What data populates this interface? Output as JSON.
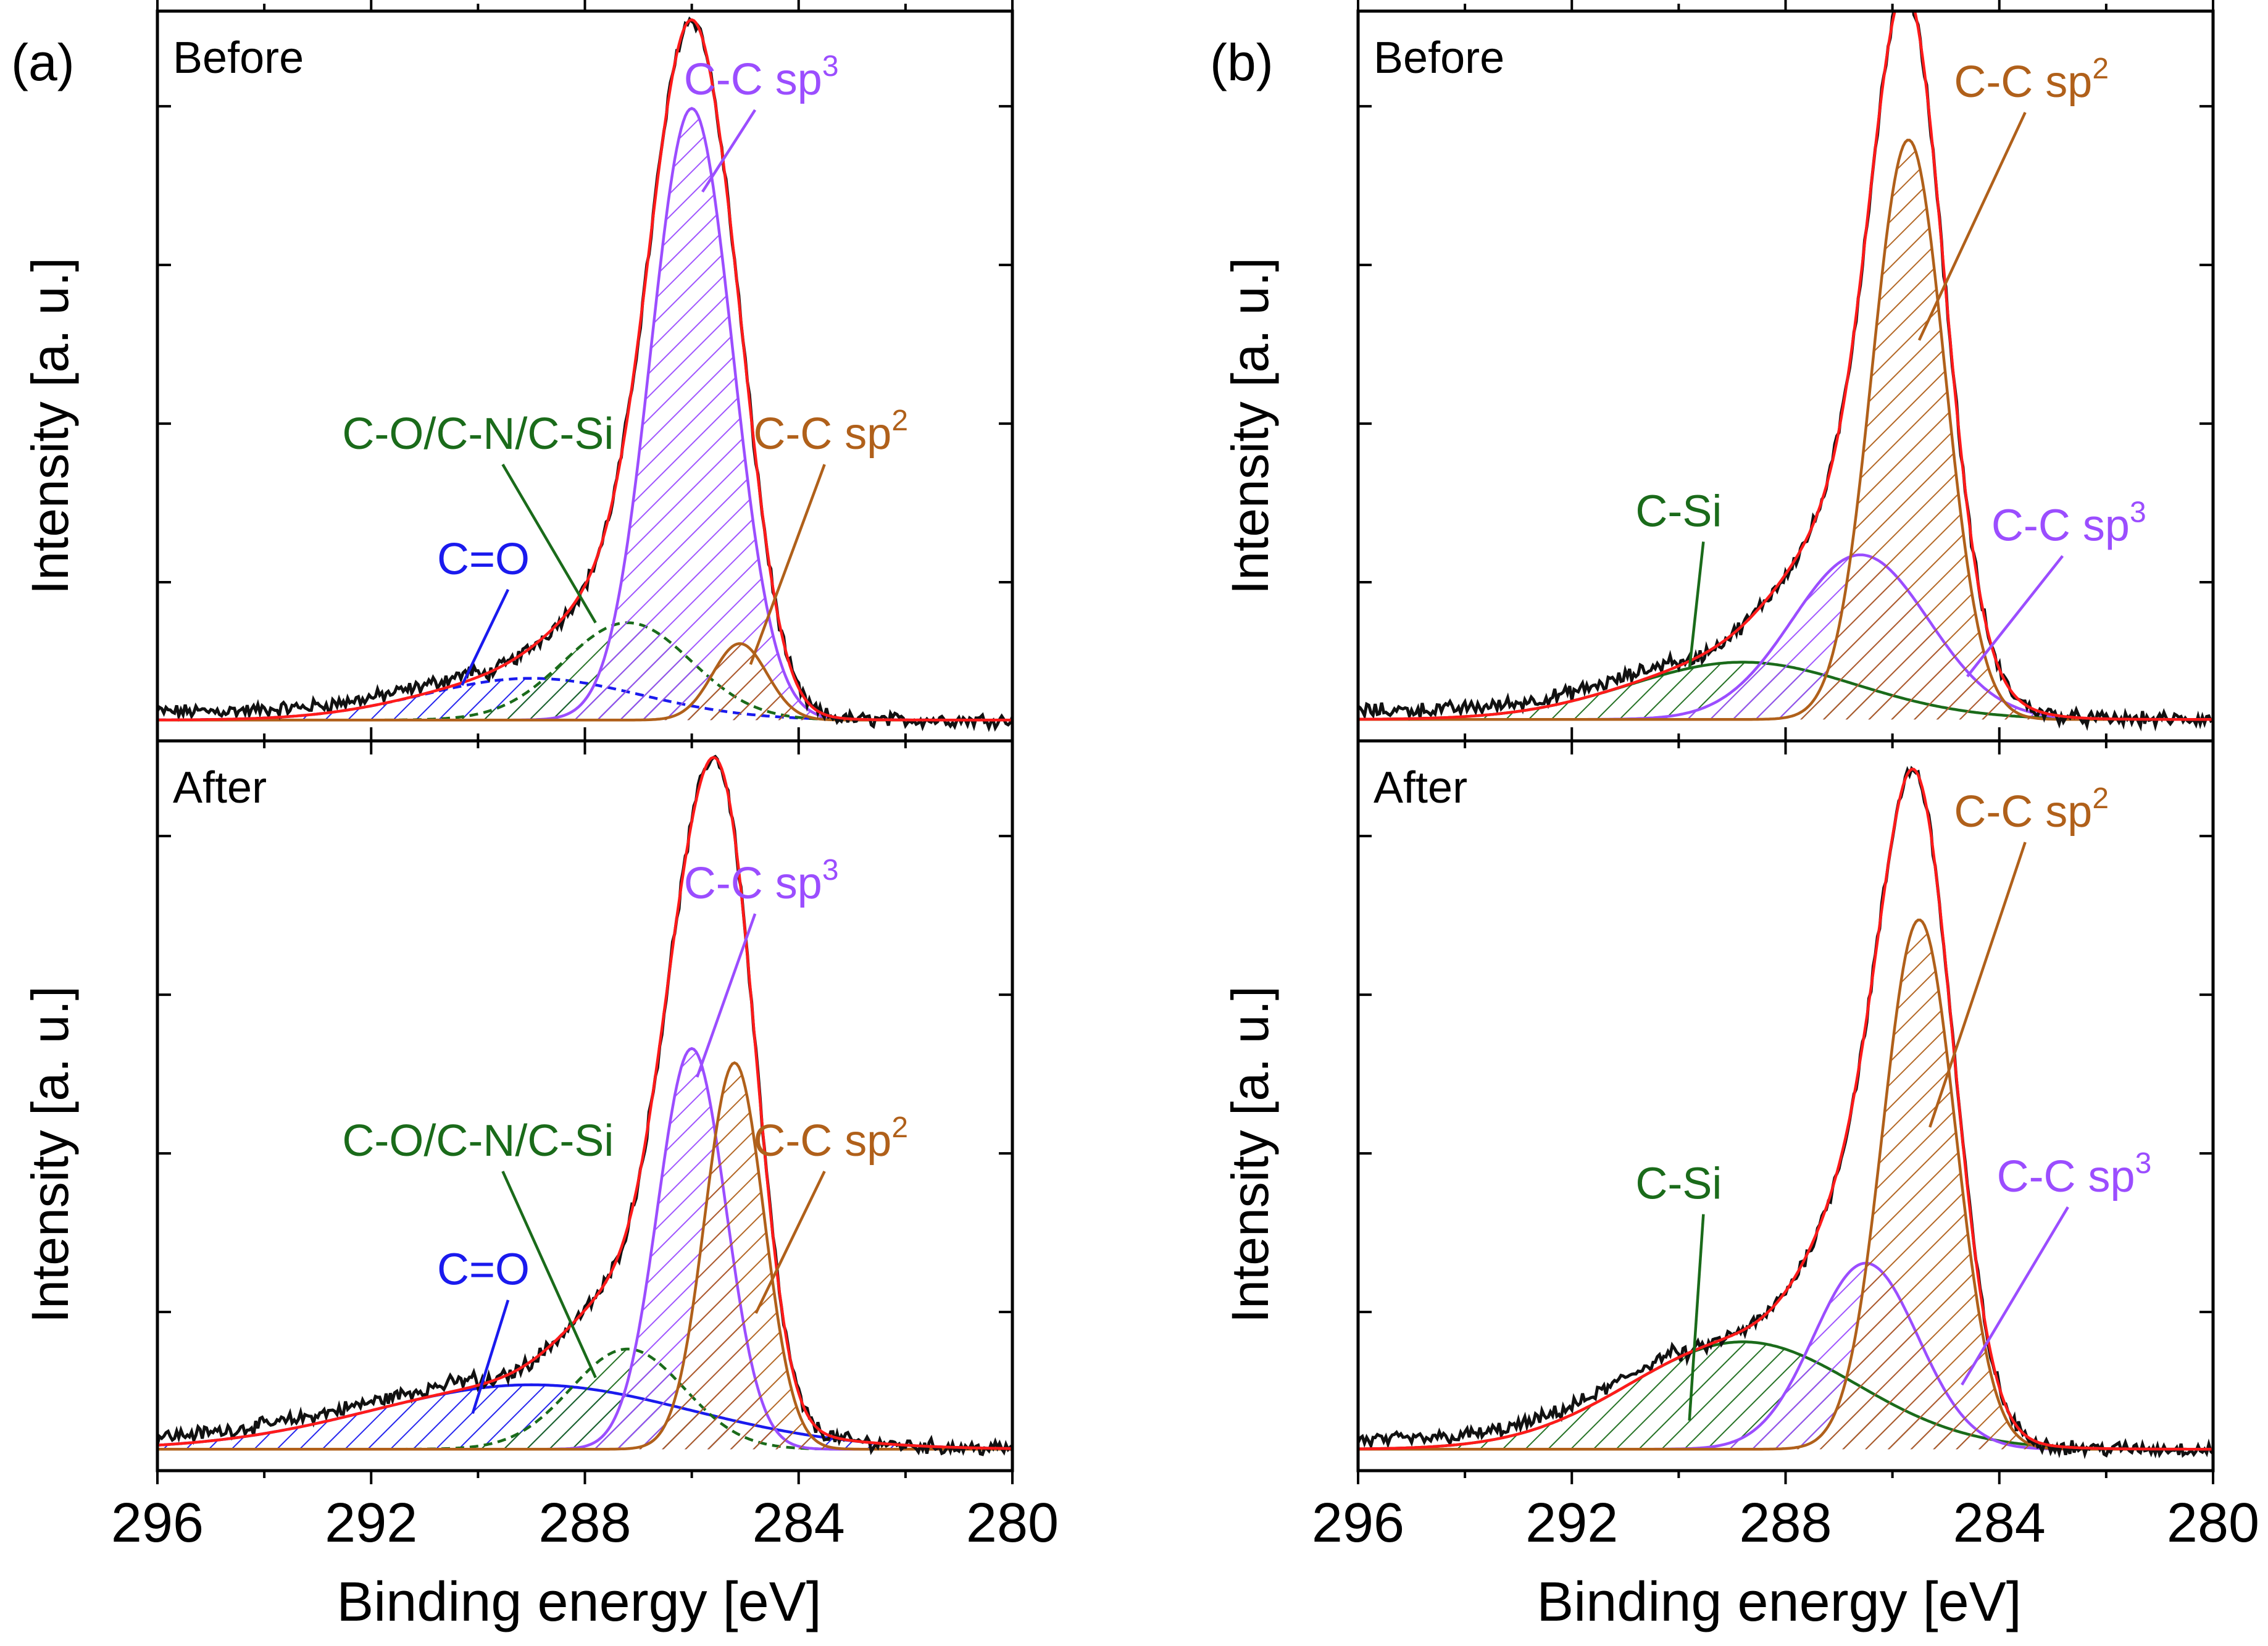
{
  "colors": {
    "measured": "#111111",
    "envelope": "#ff1a1a",
    "co": "#1a1aee",
    "cocnsi": "#1a6b1a",
    "sp3": "#9b4dff",
    "sp2": "#b0601a",
    "frame": "#000000"
  },
  "panels": [
    {
      "id": "a",
      "label": "(a)",
      "xlabel": "Binding energy [eV]",
      "ylabel": "Intensity [a. u.]"
    },
    {
      "id": "b",
      "label": "(b)",
      "xlabel": "Binding energy [eV]",
      "ylabel": "Intensity [a. u.]"
    }
  ],
  "chart_data": [
    {
      "type": "line",
      "panel": "a",
      "subplot": "Before",
      "title": "Before",
      "xlabel": "Binding energy [eV]",
      "ylabel": "Intensity [a. u.]",
      "xlim": [
        296,
        280
      ],
      "ylim": [
        0,
        1.05
      ],
      "xticks": [
        296,
        292,
        288,
        284,
        280
      ],
      "baseline": 0.03,
      "peaks": [
        {
          "name": "C=O",
          "center": 289.0,
          "fwhm": 4.8,
          "height": 0.06,
          "color": "#1a1aee",
          "dashed": true
        },
        {
          "name": "C-O/C-N/C-Si",
          "center": 287.2,
          "fwhm": 2.8,
          "height": 0.14,
          "color": "#1a6b1a",
          "dashed": true
        },
        {
          "name": "C-C sp3",
          "center": 286.0,
          "fwhm": 1.8,
          "height": 0.88,
          "color": "#9b4dff",
          "dashed": false
        },
        {
          "name": "C-C sp2",
          "center": 285.1,
          "fwhm": 1.2,
          "height": 0.11,
          "color": "#b0601a",
          "dashed": false
        }
      ],
      "annotations": [
        {
          "text": "C=O",
          "sup": "",
          "color": "#1a1aee",
          "x": 289.9,
          "y": 0.24,
          "tx": 290.3,
          "ty": 0.08
        },
        {
          "text": "C-O/C-N/C-Si",
          "sup": "",
          "color": "#1a6b1a",
          "x": 290.0,
          "y": 0.42,
          "tx": 287.8,
          "ty": 0.17
        },
        {
          "text": "C-C sp",
          "sup": "3",
          "color": "#9b4dff",
          "x": 284.7,
          "y": 0.93,
          "tx": 285.8,
          "ty": 0.79
        },
        {
          "text": "C-C sp",
          "sup": "2",
          "color": "#b0601a",
          "x": 283.4,
          "y": 0.42,
          "tx": 284.9,
          "ty": 0.11
        }
      ]
    },
    {
      "type": "line",
      "panel": "a",
      "subplot": "After",
      "title": "After",
      "xlabel": "Binding energy [eV]",
      "ylabel": "Intensity [a. u.]",
      "xlim": [
        296,
        280
      ],
      "ylim": [
        0,
        1.02
      ],
      "xticks": [
        296,
        292,
        288,
        284,
        280
      ],
      "baseline": 0.03,
      "peaks": [
        {
          "name": "C=O",
          "center": 289.0,
          "fwhm": 7.0,
          "height": 0.09,
          "color": "#1a1aee",
          "dashed": false
        },
        {
          "name": "C-O/C-N/C-Si",
          "center": 287.2,
          "fwhm": 2.5,
          "height": 0.14,
          "color": "#1a6b1a",
          "dashed": true
        },
        {
          "name": "C-C sp3",
          "center": 286.0,
          "fwhm": 1.5,
          "height": 0.56,
          "color": "#9b4dff",
          "dashed": false
        },
        {
          "name": "C-C sp2",
          "center": 285.2,
          "fwhm": 1.3,
          "height": 0.54,
          "color": "#b0601a",
          "dashed": false
        }
      ],
      "annotations": [
        {
          "text": "C=O",
          "sup": "",
          "color": "#1a1aee",
          "x": 289.9,
          "y": 0.26,
          "tx": 290.1,
          "ty": 0.08
        },
        {
          "text": "C-O/C-N/C-Si",
          "sup": "",
          "color": "#1a6b1a",
          "x": 290.0,
          "y": 0.44,
          "tx": 287.8,
          "ty": 0.13
        },
        {
          "text": "C-C sp",
          "sup": "3",
          "color": "#9b4dff",
          "x": 284.7,
          "y": 0.8,
          "tx": 285.9,
          "ty": 0.55
        },
        {
          "text": "C-C sp",
          "sup": "2",
          "color": "#b0601a",
          "x": 283.4,
          "y": 0.44,
          "tx": 284.8,
          "ty": 0.22
        }
      ]
    },
    {
      "type": "line",
      "panel": "b",
      "subplot": "Before",
      "title": "Before",
      "xlabel": "Binding energy [eV]",
      "ylabel": "Intensity [a. u.]",
      "xlim": [
        296,
        280
      ],
      "ylim": [
        0,
        1.02
      ],
      "xticks": [
        296,
        292,
        288,
        284,
        280
      ],
      "baseline": 0.03,
      "peaks": [
        {
          "name": "C-Si",
          "center": 288.8,
          "fwhm": 5.0,
          "height": 0.08,
          "color": "#1a6b1a",
          "dashed": false
        },
        {
          "name": "C-C sp3",
          "center": 286.6,
          "fwhm": 3.0,
          "height": 0.23,
          "color": "#9b4dff",
          "dashed": false
        },
        {
          "name": "C-C sp2",
          "center": 285.7,
          "fwhm": 1.6,
          "height": 0.81,
          "color": "#b0601a",
          "dashed": false
        }
      ],
      "annotations": [
        {
          "text": "C-Si",
          "sup": "",
          "color": "#1a6b1a",
          "x": 290.0,
          "y": 0.3,
          "tx": 289.8,
          "ty": 0.1
        },
        {
          "text": "C-C sp",
          "sup": "2",
          "color": "#b0601a",
          "x": 283.4,
          "y": 0.9,
          "tx": 285.5,
          "ty": 0.56
        },
        {
          "text": "C-C sp",
          "sup": "3",
          "color": "#9b4dff",
          "x": 282.7,
          "y": 0.28,
          "tx": 284.6,
          "ty": 0.09
        }
      ]
    },
    {
      "type": "line",
      "panel": "b",
      "subplot": "After",
      "title": "After",
      "xlabel": "Binding energy [eV]",
      "ylabel": "Intensity [a. u.]",
      "xlim": [
        296,
        280
      ],
      "ylim": [
        0,
        1.02
      ],
      "xticks": [
        296,
        292,
        288,
        284,
        280
      ],
      "baseline": 0.03,
      "peaks": [
        {
          "name": "C-Si",
          "center": 288.8,
          "fwhm": 5.0,
          "height": 0.15,
          "color": "#1a6b1a",
          "dashed": false
        },
        {
          "name": "C-C sp3",
          "center": 286.5,
          "fwhm": 2.3,
          "height": 0.26,
          "color": "#9b4dff",
          "dashed": false
        },
        {
          "name": "C-C sp2",
          "center": 285.5,
          "fwhm": 1.6,
          "height": 0.74,
          "color": "#b0601a",
          "dashed": false
        }
      ],
      "annotations": [
        {
          "text": "C-Si",
          "sup": "",
          "color": "#1a6b1a",
          "x": 290.0,
          "y": 0.38,
          "tx": 289.8,
          "ty": 0.07
        },
        {
          "text": "C-C sp",
          "sup": "2",
          "color": "#b0601a",
          "x": 283.4,
          "y": 0.9,
          "tx": 285.3,
          "ty": 0.48
        },
        {
          "text": "C-C sp",
          "sup": "3",
          "color": "#9b4dff",
          "x": 282.6,
          "y": 0.39,
          "tx": 284.7,
          "ty": 0.12
        }
      ]
    }
  ]
}
